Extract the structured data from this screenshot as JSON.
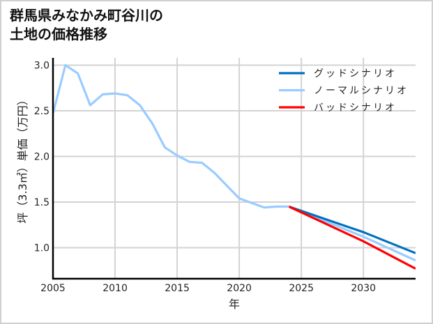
{
  "title": {
    "line1": "群馬県みなかみ町谷川の",
    "line2": "土地の価格推移"
  },
  "chart_data": {
    "type": "line",
    "title": "群馬県みなかみ町谷川の土地の価格推移",
    "xlabel": "年",
    "ylabel": "坪（3.3㎡）単価（万円）",
    "xlim": [
      2005,
      2034.2
    ],
    "ylim": [
      0.66,
      3.08
    ],
    "xticks": [
      2005,
      2010,
      2015,
      2020,
      2025,
      2030
    ],
    "yticks": [
      1.0,
      1.5,
      2.0,
      2.5,
      3.0
    ],
    "ytick_labels": [
      "1.0",
      "1.5",
      "2.0",
      "2.5",
      "3.0"
    ],
    "grid": true,
    "legend_position": "upper right",
    "series": [
      {
        "name": "ノーマルシナリオ",
        "color": "#99CCFF",
        "segment": "historical",
        "x": [
          2005,
          2006,
          2007,
          2008,
          2009,
          2010,
          2011,
          2012,
          2013,
          2014,
          2015,
          2016,
          2017,
          2018,
          2019,
          2020,
          2021,
          2022,
          2023,
          2024
        ],
        "y": [
          2.47,
          3.0,
          2.91,
          2.56,
          2.68,
          2.69,
          2.67,
          2.56,
          2.36,
          2.1,
          2.01,
          1.94,
          1.93,
          1.82,
          1.68,
          1.54,
          1.49,
          1.44,
          1.45,
          1.45
        ]
      },
      {
        "name": "グッドシナリオ",
        "color": "#0070C0",
        "segment": "forecast",
        "x": [
          2024,
          2030,
          2034.2
        ],
        "y": [
          1.45,
          1.17,
          0.94
        ]
      },
      {
        "name": "ノーマルシナリオ",
        "color": "#99CCFF",
        "segment": "forecast",
        "x": [
          2024,
          2030,
          2034.2
        ],
        "y": [
          1.45,
          1.12,
          0.86
        ]
      },
      {
        "name": "バッドシナリオ",
        "color": "#FF0000",
        "segment": "forecast",
        "x": [
          2024,
          2030,
          2034.2
        ],
        "y": [
          1.45,
          1.07,
          0.77
        ]
      }
    ],
    "legend": [
      {
        "label": "グッドシナリオ",
        "color": "#0070C0"
      },
      {
        "label": "ノーマルシナリオ",
        "color": "#99CCFF"
      },
      {
        "label": "バッドシナリオ",
        "color": "#FF0000"
      }
    ]
  }
}
